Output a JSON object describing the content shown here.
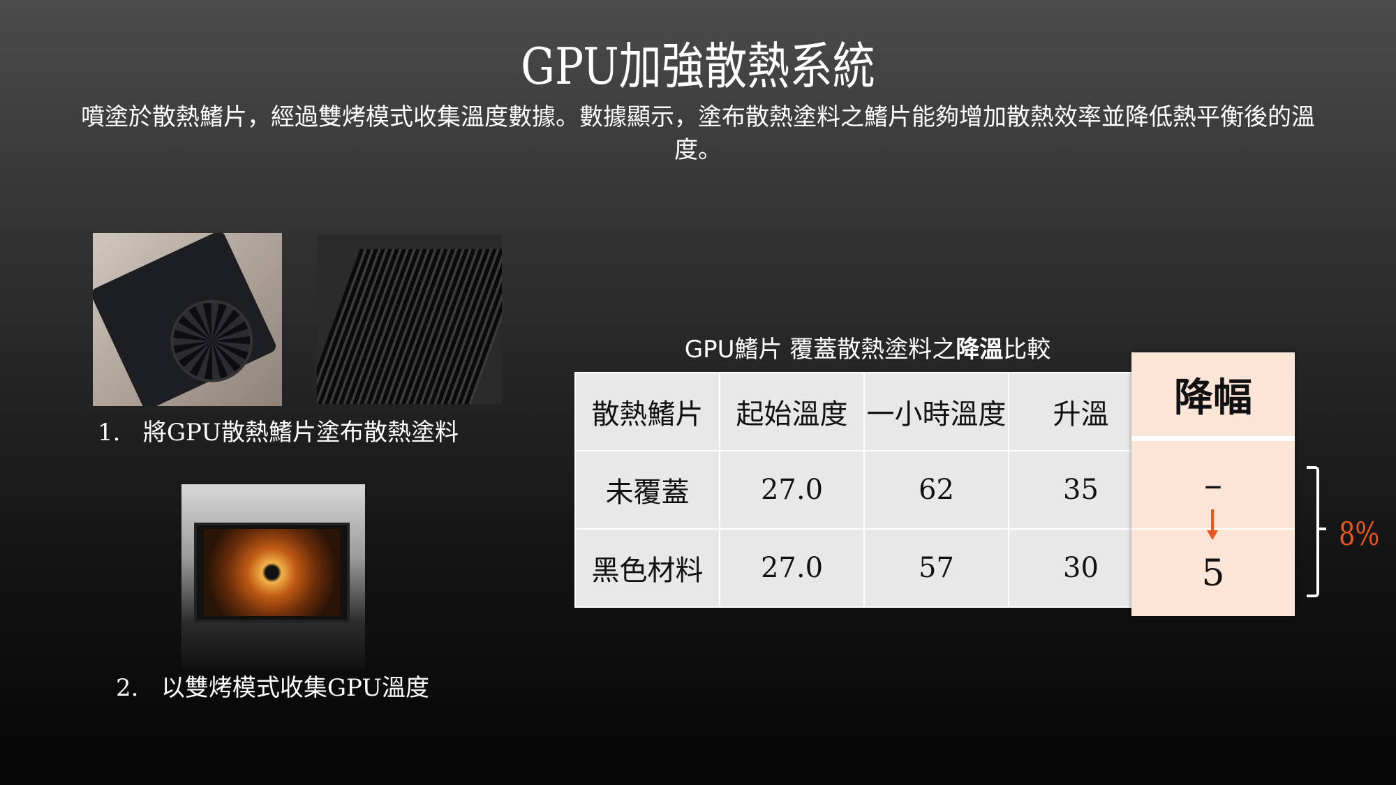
{
  "title": "GPU加強散熱系統",
  "subtitle": "噴塗於散熱鰭片，經過雙烤模式收集溫度數據。數據顯示，塗布散熱塗料之鰭片能夠增加散熱效率並降低熱平衡後的溫度。",
  "steps": [
    {
      "number": "1.",
      "text": "將GPU散熱鰭片塗布散熱塗料"
    },
    {
      "number": "2.",
      "text": "以雙烤模式收集GPU溫度"
    }
  ],
  "table": {
    "caption_pre": "GPU鰭片 覆蓋散熱塗料之",
    "caption_bold": "降溫",
    "caption_post": "比較",
    "headers": [
      "散熱鰭片",
      "起始溫度",
      "一小時溫度",
      "升溫"
    ],
    "rows": [
      [
        "未覆蓋",
        "27.0",
        "62",
        "35"
      ],
      [
        "黑色材料",
        "27.0",
        "57",
        "30"
      ]
    ],
    "drop_header": "降幅",
    "drop_values": [
      "–",
      "5"
    ],
    "drop_percent": "8%"
  },
  "colors": {
    "accent": "#e8571e",
    "highlight": "#fbe5d6",
    "cell": "#e8e8e8"
  }
}
